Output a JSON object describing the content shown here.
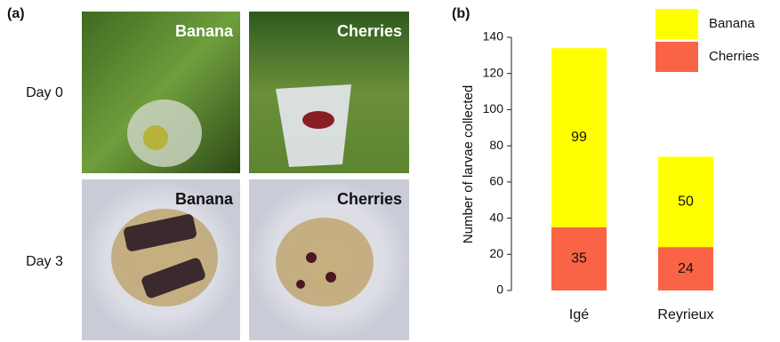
{
  "panel_a": {
    "label": "(a)",
    "rows": [
      "Day 0",
      "Day 3"
    ],
    "photos": [
      [
        "Banana",
        "Cherries"
      ],
      [
        "Banana",
        "Cherries"
      ]
    ]
  },
  "chart_data": {
    "type": "bar",
    "stacked": true,
    "panel_label": "(b)",
    "y_label": "Number of larvae collected",
    "categories": [
      "Igé",
      "Reyrieux"
    ],
    "series": [
      {
        "name": "Banana",
        "color": "#ffff00",
        "values": [
          99,
          50
        ]
      },
      {
        "name": "Cherries",
        "color": "#fa6446",
        "values": [
          35,
          24
        ]
      }
    ],
    "ylim": [
      0,
      140
    ],
    "yticks": [
      0,
      20,
      40,
      60,
      80,
      100,
      120,
      140
    ],
    "legend": "upper right"
  }
}
